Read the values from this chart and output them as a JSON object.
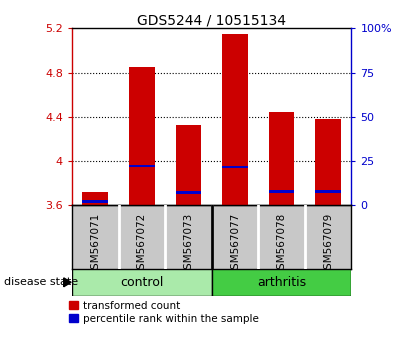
{
  "title": "GDS5244 / 10515134",
  "categories": [
    "GSM567071",
    "GSM567072",
    "GSM567073",
    "GSM567077",
    "GSM567078",
    "GSM567079"
  ],
  "red_values": [
    3.72,
    4.85,
    4.33,
    5.15,
    4.44,
    4.38
  ],
  "blue_values": [
    3.635,
    3.955,
    3.715,
    3.945,
    3.725,
    3.725
  ],
  "baseline": 3.6,
  "ylim_left": [
    3.6,
    5.2
  ],
  "ylim_right": [
    0,
    100
  ],
  "yticks_left": [
    3.6,
    4.0,
    4.4,
    4.8,
    5.2
  ],
  "yticks_right": [
    0,
    25,
    50,
    75,
    100
  ],
  "ytick_labels_left": [
    "3.6",
    "4",
    "4.4",
    "4.8",
    "5.2"
  ],
  "ytick_labels_right": [
    "0",
    "25",
    "50",
    "75",
    "100%"
  ],
  "grid_values": [
    4.0,
    4.4,
    4.8
  ],
  "bar_width": 0.55,
  "red_color": "#cc0000",
  "blue_color": "#0000cc",
  "bar_bg_color": "#c8c8c8",
  "control_color": "#aaeaaa",
  "arthritis_color": "#44cc44",
  "control_label": "control",
  "arthritis_label": "arthritis",
  "disease_state_label": "disease state",
  "legend_red": "transformed count",
  "legend_blue": "percentile rank within the sample",
  "blue_bar_height": 0.022
}
